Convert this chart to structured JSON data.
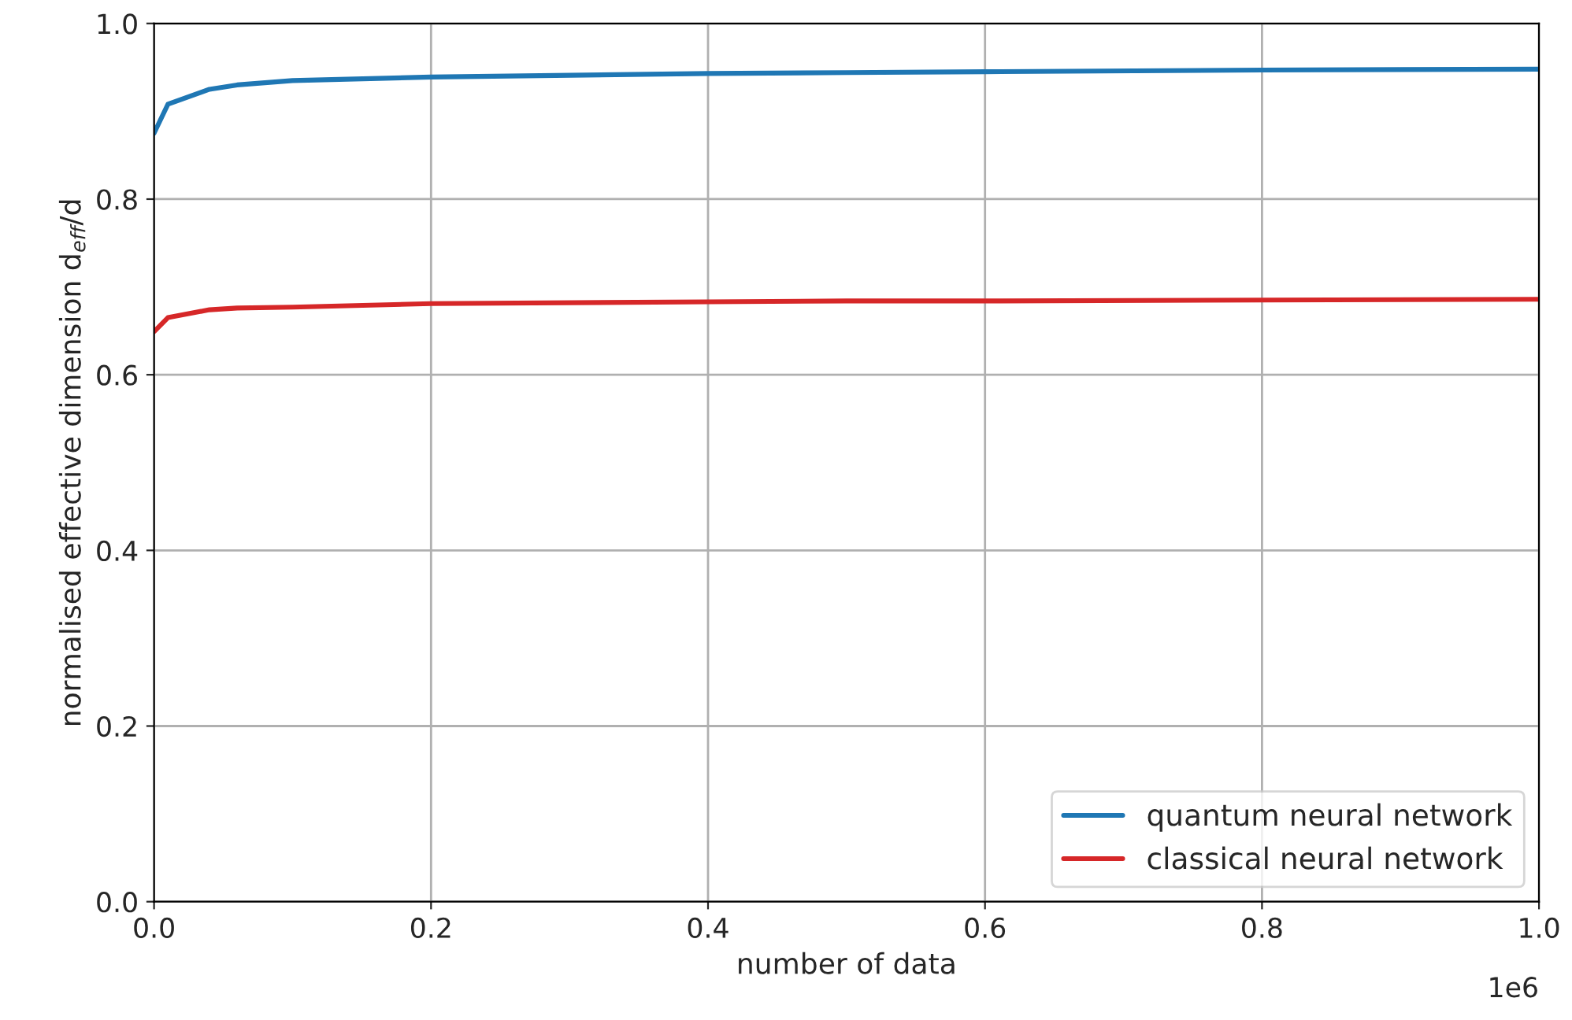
{
  "chart_data": {
    "type": "line",
    "xlabel": "number of data",
    "ylabel": "normalised effective dimension d$_{eff}$/d",
    "xlim": [
      0,
      1
    ],
    "ylim": [
      0,
      1
    ],
    "xticks": [
      {
        "value": 0,
        "label": "0.0"
      },
      0.2,
      0.4,
      0.6,
      0.8,
      {
        "value": 1,
        "label": "1.0"
      }
    ],
    "yticks": [
      {
        "value": 0,
        "label": "0.0"
      },
      {
        "value": 0.2,
        "label": "0.2"
      },
      {
        "value": 0.4,
        "label": "0.4"
      },
      {
        "value": 0.6,
        "label": "0.6"
      },
      {
        "value": 0.8,
        "label": "0.8"
      },
      {
        "value": 1,
        "label": "1.0"
      }
    ],
    "x": [
      0,
      0.01,
      0.04,
      0.06,
      0.1,
      0.2,
      0.4,
      0.5,
      0.6,
      0.8,
      1
    ],
    "series": [
      {
        "name": "quantum neural network",
        "color": "#1f77b4",
        "values": [
          0.875,
          0.908,
          0.925,
          0.93,
          0.935,
          0.939,
          0.943,
          0.944,
          0.945,
          0.947,
          0.948
        ]
      },
      {
        "name": "classical neural network",
        "color": "#d62728",
        "values": [
          0.649,
          0.665,
          0.674,
          0.676,
          0.677,
          0.681,
          0.683,
          0.684,
          0.684,
          0.685,
          0.686
        ]
      }
    ],
    "annotations": [
      "1e6"
    ],
    "grid": true,
    "legend": "lower right",
    "marker": "none",
    "line_style": "solid"
  }
}
